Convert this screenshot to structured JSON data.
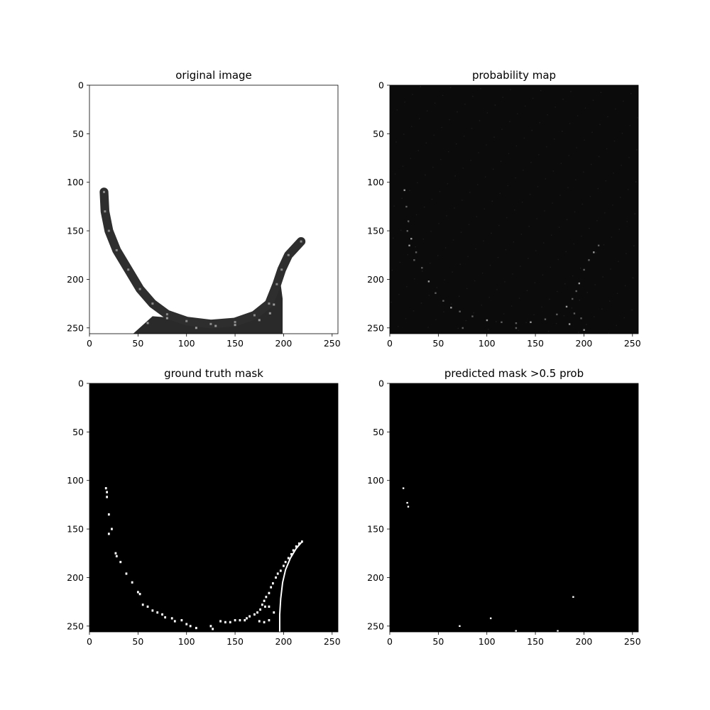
{
  "figure": {
    "background": "#ffffff"
  },
  "chart_data": [
    {
      "type": "heatmap",
      "title": "original image",
      "xlabel": "",
      "ylabel": "",
      "xlim": [
        0,
        256
      ],
      "ylim": [
        256,
        0
      ],
      "x_ticks": [
        0,
        50,
        100,
        150,
        200,
        250
      ],
      "y_ticks": [
        0,
        50,
        100,
        150,
        200,
        250
      ],
      "background": "#ffffff",
      "colormap": "gray",
      "content": "crescent-shaped textured gray object (low intensity) on white background",
      "shape_spine": [
        [
          15,
          110
        ],
        [
          16,
          130
        ],
        [
          20,
          150
        ],
        [
          28,
          170
        ],
        [
          40,
          190
        ],
        [
          52,
          210
        ],
        [
          65,
          225
        ],
        [
          80,
          236
        ],
        [
          100,
          243
        ],
        [
          125,
          246
        ],
        [
          150,
          244
        ],
        [
          170,
          237
        ],
        [
          185,
          225
        ],
        [
          193,
          205
        ],
        [
          198,
          190
        ],
        [
          205,
          175
        ],
        [
          218,
          161
        ]
      ],
      "shape_half_width": 4.5,
      "bottom_region": [
        [
          45,
          256
        ],
        [
          65,
          238
        ],
        [
          90,
          240
        ],
        [
          125,
          244
        ],
        [
          160,
          238
        ],
        [
          180,
          226
        ],
        [
          190,
          212
        ],
        [
          197,
          205
        ],
        [
          199,
          220
        ],
        [
          199,
          256
        ]
      ]
    },
    {
      "type": "heatmap",
      "title": "probability map",
      "xlabel": "",
      "ylabel": "",
      "xlim": [
        0,
        256
      ],
      "ylim": [
        256,
        0
      ],
      "x_ticks": [
        0,
        50,
        100,
        150,
        200,
        250
      ],
      "y_ticks": [
        0,
        50,
        100,
        150,
        200,
        250
      ],
      "background": "#0b0b0b",
      "colormap": "gray",
      "content": "mostly near-zero probabilities with faint bright speckles along the object boundary",
      "speckle_points": [
        [
          15,
          108
        ],
        [
          17,
          125
        ],
        [
          19,
          140
        ],
        [
          22,
          158
        ],
        [
          27,
          172
        ],
        [
          33,
          188
        ],
        [
          40,
          202
        ],
        [
          47,
          214
        ],
        [
          55,
          222
        ],
        [
          63,
          229
        ],
        [
          72,
          233
        ],
        [
          85,
          238
        ],
        [
          100,
          242
        ],
        [
          115,
          244
        ],
        [
          130,
          245
        ],
        [
          145,
          244
        ],
        [
          160,
          241
        ],
        [
          172,
          236
        ],
        [
          182,
          228
        ],
        [
          188,
          220
        ],
        [
          192,
          212
        ],
        [
          195,
          204
        ],
        [
          200,
          190
        ],
        [
          205,
          180
        ],
        [
          210,
          172
        ],
        [
          215,
          165
        ],
        [
          197,
          240
        ],
        [
          200,
          252
        ],
        [
          130,
          250
        ],
        [
          75,
          250
        ],
        [
          20,
          165
        ],
        [
          18,
          150
        ],
        [
          25,
          180
        ],
        [
          185,
          246
        ],
        [
          190,
          235
        ]
      ]
    },
    {
      "type": "heatmap",
      "title": "ground truth mask",
      "xlabel": "",
      "ylabel": "",
      "xlim": [
        0,
        256
      ],
      "ylim": [
        256,
        0
      ],
      "x_ticks": [
        0,
        50,
        100,
        150,
        200,
        250
      ],
      "y_ticks": [
        0,
        50,
        100,
        150,
        200,
        250
      ],
      "background": "#000000",
      "colormap": "binary",
      "content": "binary mask: white pixels along object boundary",
      "mask_points": [
        [
          17,
          108
        ],
        [
          18,
          112
        ],
        [
          18,
          117
        ],
        [
          20,
          135
        ],
        [
          20,
          155
        ],
        [
          23,
          150
        ],
        [
          27,
          175
        ],
        [
          28,
          178
        ],
        [
          32,
          184
        ],
        [
          38,
          196
        ],
        [
          44,
          205
        ],
        [
          50,
          215
        ],
        [
          52,
          217
        ],
        [
          55,
          228
        ],
        [
          60,
          230
        ],
        [
          65,
          234
        ],
        [
          70,
          236
        ],
        [
          75,
          238
        ],
        [
          78,
          241
        ],
        [
          85,
          242
        ],
        [
          88,
          245
        ],
        [
          95,
          244
        ],
        [
          100,
          248
        ],
        [
          104,
          250
        ],
        [
          110,
          252
        ],
        [
          125,
          250
        ],
        [
          127,
          253
        ],
        [
          135,
          245
        ],
        [
          140,
          246
        ],
        [
          145,
          246
        ],
        [
          150,
          244
        ],
        [
          155,
          244
        ],
        [
          160,
          244
        ],
        [
          162,
          242
        ],
        [
          165,
          240
        ],
        [
          170,
          238
        ],
        [
          173,
          236
        ],
        [
          176,
          233
        ],
        [
          178,
          228
        ],
        [
          180,
          224
        ],
        [
          182,
          220
        ],
        [
          185,
          216
        ],
        [
          187,
          210
        ],
        [
          189,
          206
        ],
        [
          192,
          200
        ],
        [
          194,
          196
        ],
        [
          197,
          193
        ],
        [
          200,
          188
        ],
        [
          202,
          184
        ],
        [
          205,
          180
        ],
        [
          208,
          176
        ],
        [
          210,
          172
        ],
        [
          213,
          168
        ],
        [
          216,
          165
        ],
        [
          219,
          163
        ],
        [
          175,
          245
        ],
        [
          180,
          246
        ],
        [
          185,
          244
        ],
        [
          190,
          236
        ],
        [
          185,
          230
        ],
        [
          181,
          230
        ]
      ],
      "mask_curve": [
        [
          196,
          256
        ],
        [
          196,
          238
        ],
        [
          197,
          222
        ],
        [
          199,
          205
        ],
        [
          202,
          192
        ],
        [
          207,
          180
        ],
        [
          213,
          170
        ],
        [
          219,
          163
        ]
      ]
    },
    {
      "type": "heatmap",
      "title": "predicted mask >0.5 prob",
      "xlabel": "",
      "ylabel": "",
      "xlim": [
        0,
        256
      ],
      "ylim": [
        256,
        0
      ],
      "x_ticks": [
        0,
        50,
        100,
        150,
        200,
        250
      ],
      "y_ticks": [
        0,
        50,
        100,
        150,
        200,
        250
      ],
      "background": "#000000",
      "colormap": "binary",
      "content": "binary prediction: only a few isolated white pixels",
      "mask_points": [
        [
          14,
          108
        ],
        [
          18,
          123
        ],
        [
          19,
          127
        ],
        [
          72,
          250
        ],
        [
          104,
          242
        ],
        [
          130,
          255
        ],
        [
          173,
          255
        ],
        [
          189,
          220
        ]
      ]
    }
  ]
}
